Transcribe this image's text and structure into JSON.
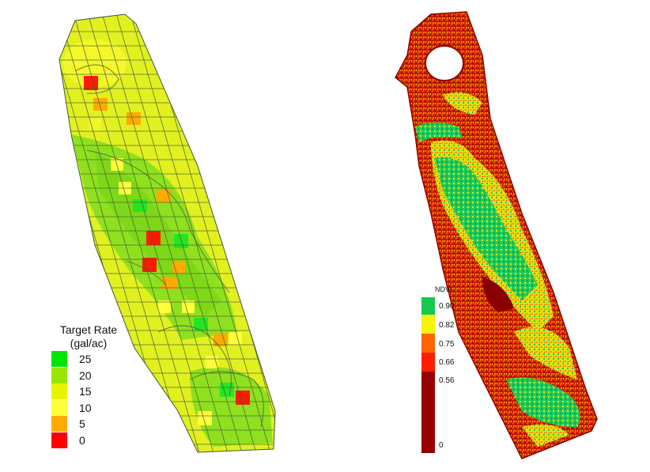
{
  "left_map": {
    "legend": {
      "title_line1": "Target Rate",
      "title_line2": "(gal/ac)",
      "items": [
        {
          "label": "25",
          "color": "#00e600"
        },
        {
          "label": "20",
          "color": "#9ae600"
        },
        {
          "label": "15",
          "color": "#e6f500"
        },
        {
          "label": "10",
          "color": "#ffff3c"
        },
        {
          "label": "5",
          "color": "#ffaa00"
        },
        {
          "label": "0",
          "color": "#ff0000"
        }
      ]
    }
  },
  "right_map": {
    "legend": {
      "title": "NDVI",
      "items": [
        {
          "label": "0.90",
          "color": "#14c850"
        },
        {
          "label": "0.82",
          "color": "#f5f50a"
        },
        {
          "label": "0.75",
          "color": "#ff6400"
        },
        {
          "label": "0.66",
          "color": "#ff1e00"
        },
        {
          "label": "0.56",
          "color": "#960000"
        },
        {
          "label": "0",
          "color": "#960000"
        }
      ]
    }
  }
}
